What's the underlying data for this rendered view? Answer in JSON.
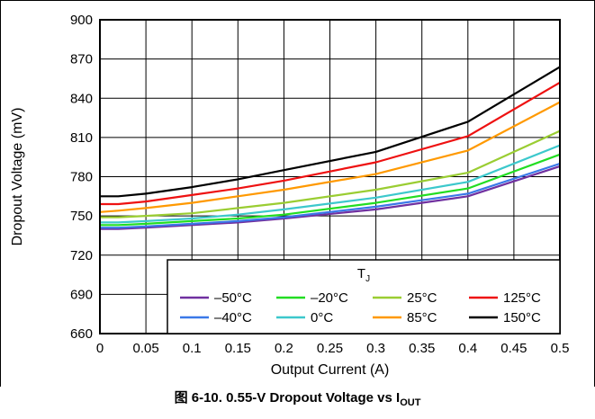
{
  "chart_data": {
    "type": "line",
    "title": "",
    "xlabel": "Output Current (A)",
    "ylabel": "Dropout Voltage (mV)",
    "xlim": [
      0,
      0.5
    ],
    "ylim": [
      660,
      900
    ],
    "x_ticks": [
      "0",
      "0.05",
      "0.1",
      "0.15",
      "0.2",
      "0.25",
      "0.3",
      "0.35",
      "0.4",
      "0.45",
      "0.5"
    ],
    "y_ticks": [
      "660",
      "690",
      "720",
      "750",
      "780",
      "810",
      "840",
      "870",
      "900"
    ],
    "grid": true,
    "legend": {
      "title": "T",
      "title_sub": "J",
      "position": "bottom-right"
    },
    "x": [
      0,
      0.02,
      0.05,
      0.1,
      0.15,
      0.2,
      0.3,
      0.4,
      0.5
    ],
    "series": [
      {
        "name": "–50°C",
        "color": "#7030A0",
        "values": [
          740,
          740,
          741,
          743,
          745,
          748,
          755,
          765,
          788
        ]
      },
      {
        "name": "–40°C",
        "color": "#3A78E8",
        "values": [
          741,
          741,
          742,
          744,
          746,
          749,
          757,
          767,
          790
        ]
      },
      {
        "name": "–20°C",
        "color": "#22DD22",
        "values": [
          743,
          743,
          744,
          746,
          748,
          751,
          760,
          771,
          797
        ]
      },
      {
        "name": "0°C",
        "color": "#3CC8CC",
        "values": [
          745,
          745,
          746,
          748,
          751,
          755,
          764,
          776,
          804
        ]
      },
      {
        "name": "25°C",
        "color": "#9ACD32",
        "values": [
          749,
          749,
          750,
          752,
          756,
          760,
          770,
          783,
          815
        ]
      },
      {
        "name": "85°C",
        "color": "#FF9900",
        "values": [
          753,
          754,
          756,
          760,
          765,
          770,
          782,
          800,
          837
        ]
      },
      {
        "name": "125°C",
        "color": "#EE1111",
        "values": [
          759,
          759,
          761,
          766,
          771,
          777,
          791,
          811,
          852
        ]
      },
      {
        "name": "150°C",
        "color": "#000000",
        "values": [
          765,
          765,
          767,
          772,
          778,
          785,
          799,
          822,
          864
        ]
      }
    ]
  },
  "caption": {
    "prefix": "图 6-10. 0.55-V Dropout Voltage vs I",
    "sub": "OUT"
  }
}
